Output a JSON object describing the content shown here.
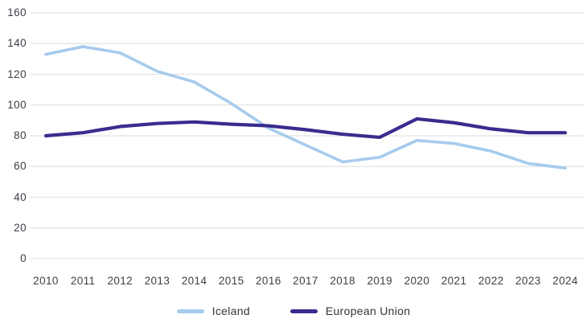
{
  "chart_data": {
    "type": "line",
    "title": "",
    "xlabel": "",
    "ylabel": "",
    "x": [
      "2010",
      "2011",
      "2012",
      "2013",
      "2014",
      "2015",
      "2016",
      "2017",
      "2018",
      "2019",
      "2020",
      "2021",
      "2022",
      "2023",
      "2024"
    ],
    "series": [
      {
        "name": "Iceland",
        "color": "#a6cbed",
        "values": [
          133,
          138,
          134,
          122,
          115,
          101,
          85,
          74,
          63,
          66,
          77,
          75,
          70,
          62,
          59
        ]
      },
      {
        "name": "European Union",
        "color": "#392c8e",
        "values": [
          80,
          82,
          86,
          88,
          89,
          87.5,
          86.5,
          84,
          81,
          79,
          91,
          88.5,
          84.5,
          82,
          82
        ]
      }
    ],
    "ylim": [
      0,
      160
    ],
    "ytick_step": 20,
    "yticks": [
      "0",
      "20",
      "40",
      "60",
      "80",
      "100",
      "120",
      "140",
      "160"
    ],
    "grid": "horizontal",
    "legend_position": "bottom-center"
  },
  "colors": {
    "background": "#ffffff",
    "gridline": "#e3e3e3",
    "tick_text": "#3b3e46",
    "legend_text": "#32343b"
  }
}
